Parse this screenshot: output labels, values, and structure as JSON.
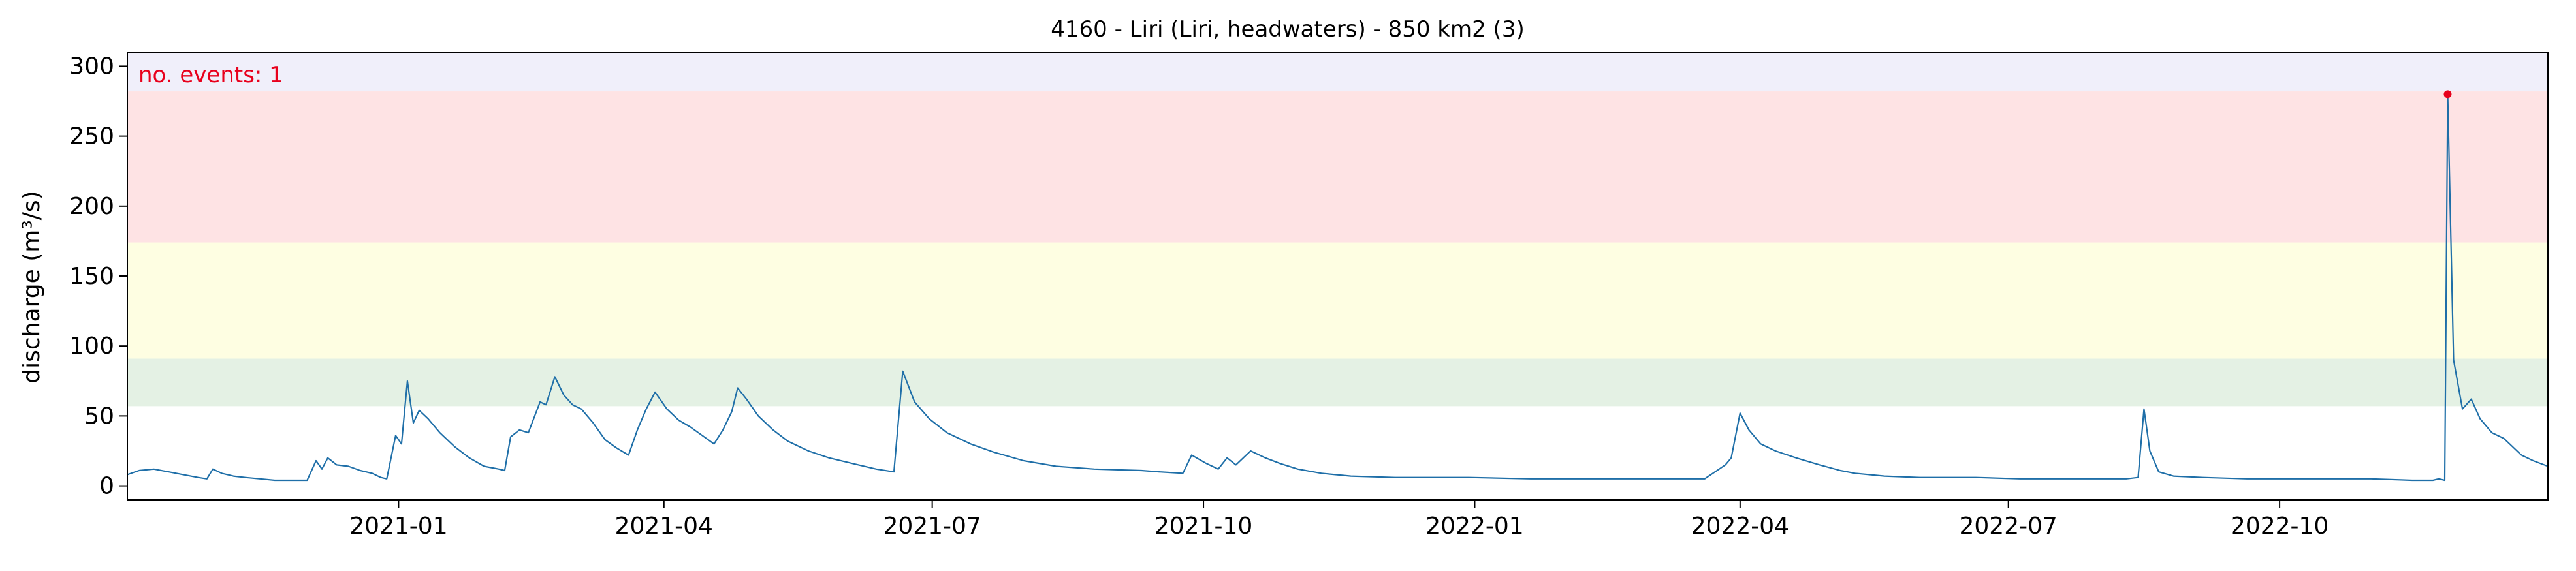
{
  "chart_data": {
    "type": "line",
    "title": "4160 - Liri (Liri, headwaters) - 850 km2 (3)",
    "xlabel": "",
    "ylabel": "discharge (m³/s)",
    "ylim": [
      -10,
      310
    ],
    "xlim": [
      "2020-10-01",
      "2022-12-31"
    ],
    "yticks": [
      0,
      50,
      100,
      150,
      200,
      250,
      300
    ],
    "xticks": [
      "2021-01",
      "2021-04",
      "2021-07",
      "2021-10",
      "2022-01",
      "2022-04",
      "2022-07",
      "2022-10"
    ],
    "line_color": "#1f6fa8",
    "grid": false,
    "annotation": {
      "text": "no. events: 1",
      "color": "#e8001c"
    },
    "bands": [
      {
        "from": 57,
        "to": 91,
        "color": "#e4f1e4"
      },
      {
        "from": 91,
        "to": 174,
        "color": "#fefee2"
      },
      {
        "from": 174,
        "to": 282,
        "color": "#fee3e4"
      },
      {
        "from": 282,
        "to": 310,
        "color": "#f0effa"
      }
    ],
    "event_points": [
      {
        "x": "2022-11-27",
        "y": 280,
        "color": "#e8001c"
      }
    ],
    "series": [
      {
        "points": [
          [
            "2020-10-01",
            8
          ],
          [
            "2020-10-05",
            11
          ],
          [
            "2020-10-10",
            12
          ],
          [
            "2020-10-15",
            10
          ],
          [
            "2020-10-20",
            8
          ],
          [
            "2020-10-25",
            6
          ],
          [
            "2020-10-28",
            5
          ],
          [
            "2020-10-30",
            12
          ],
          [
            "2020-11-02",
            9
          ],
          [
            "2020-11-06",
            7
          ],
          [
            "2020-11-10",
            6
          ],
          [
            "2020-11-15",
            5
          ],
          [
            "2020-11-20",
            4
          ],
          [
            "2020-11-28",
            4
          ],
          [
            "2020-12-01",
            4
          ],
          [
            "2020-12-04",
            18
          ],
          [
            "2020-12-06",
            12
          ],
          [
            "2020-12-08",
            20
          ],
          [
            "2020-12-11",
            15
          ],
          [
            "2020-12-15",
            14
          ],
          [
            "2020-12-19",
            11
          ],
          [
            "2020-12-23",
            9
          ],
          [
            "2020-12-26",
            6
          ],
          [
            "2020-12-28",
            5
          ],
          [
            "2020-12-31",
            36
          ],
          [
            "2021-01-02",
            30
          ],
          [
            "2021-01-04",
            75
          ],
          [
            "2021-01-06",
            45
          ],
          [
            "2021-01-08",
            54
          ],
          [
            "2021-01-11",
            48
          ],
          [
            "2021-01-15",
            38
          ],
          [
            "2021-01-20",
            28
          ],
          [
            "2021-01-25",
            20
          ],
          [
            "2021-01-30",
            14
          ],
          [
            "2021-02-04",
            12
          ],
          [
            "2021-02-06",
            11
          ],
          [
            "2021-02-08",
            35
          ],
          [
            "2021-02-11",
            40
          ],
          [
            "2021-02-14",
            38
          ],
          [
            "2021-02-18",
            60
          ],
          [
            "2021-02-20",
            58
          ],
          [
            "2021-02-23",
            78
          ],
          [
            "2021-02-26",
            65
          ],
          [
            "2021-03-01",
            58
          ],
          [
            "2021-03-04",
            55
          ],
          [
            "2021-03-08",
            45
          ],
          [
            "2021-03-12",
            33
          ],
          [
            "2021-03-16",
            27
          ],
          [
            "2021-03-20",
            22
          ],
          [
            "2021-03-23",
            40
          ],
          [
            "2021-03-26",
            55
          ],
          [
            "2021-03-29",
            67
          ],
          [
            "2021-04-02",
            55
          ],
          [
            "2021-04-06",
            47
          ],
          [
            "2021-04-10",
            42
          ],
          [
            "2021-04-14",
            36
          ],
          [
            "2021-04-18",
            30
          ],
          [
            "2021-04-21",
            40
          ],
          [
            "2021-04-24",
            53
          ],
          [
            "2021-04-26",
            70
          ],
          [
            "2021-04-29",
            62
          ],
          [
            "2021-05-03",
            50
          ],
          [
            "2021-05-08",
            40
          ],
          [
            "2021-05-13",
            32
          ],
          [
            "2021-05-20",
            25
          ],
          [
            "2021-05-27",
            20
          ],
          [
            "2021-06-04",
            16
          ],
          [
            "2021-06-12",
            12
          ],
          [
            "2021-06-18",
            10
          ],
          [
            "2021-06-21",
            82
          ],
          [
            "2021-06-25",
            60
          ],
          [
            "2021-06-30",
            48
          ],
          [
            "2021-07-06",
            38
          ],
          [
            "2021-07-14",
            30
          ],
          [
            "2021-07-22",
            24
          ],
          [
            "2021-08-01",
            18
          ],
          [
            "2021-08-12",
            14
          ],
          [
            "2021-08-25",
            12
          ],
          [
            "2021-09-10",
            11
          ],
          [
            "2021-09-16",
            10
          ],
          [
            "2021-09-24",
            9
          ],
          [
            "2021-09-27",
            22
          ],
          [
            "2021-10-02",
            16
          ],
          [
            "2021-10-06",
            12
          ],
          [
            "2021-10-09",
            20
          ],
          [
            "2021-10-12",
            15
          ],
          [
            "2021-10-17",
            25
          ],
          [
            "2021-10-22",
            20
          ],
          [
            "2021-10-27",
            16
          ],
          [
            "2021-11-02",
            12
          ],
          [
            "2021-11-10",
            9
          ],
          [
            "2021-11-20",
            7
          ],
          [
            "2021-12-05",
            6
          ],
          [
            "2021-12-30",
            6
          ],
          [
            "2022-01-20",
            5
          ],
          [
            "2022-02-10",
            5
          ],
          [
            "2022-02-25",
            5
          ],
          [
            "2022-03-10",
            5
          ],
          [
            "2022-03-20",
            5
          ],
          [
            "2022-03-27",
            15
          ],
          [
            "2022-03-29",
            20
          ],
          [
            "2022-04-01",
            52
          ],
          [
            "2022-04-04",
            40
          ],
          [
            "2022-04-08",
            30
          ],
          [
            "2022-04-13",
            25
          ],
          [
            "2022-04-20",
            20
          ],
          [
            "2022-04-28",
            15
          ],
          [
            "2022-05-05",
            11
          ],
          [
            "2022-05-10",
            9
          ],
          [
            "2022-05-20",
            7
          ],
          [
            "2022-06-01",
            6
          ],
          [
            "2022-06-20",
            6
          ],
          [
            "2022-07-05",
            5
          ],
          [
            "2022-07-25",
            5
          ],
          [
            "2022-08-10",
            5
          ],
          [
            "2022-08-14",
            6
          ],
          [
            "2022-08-16",
            55
          ],
          [
            "2022-08-18",
            25
          ],
          [
            "2022-08-21",
            10
          ],
          [
            "2022-08-26",
            7
          ],
          [
            "2022-09-05",
            6
          ],
          [
            "2022-09-20",
            5
          ],
          [
            "2022-10-01",
            5
          ],
          [
            "2022-10-15",
            5
          ],
          [
            "2022-11-01",
            5
          ],
          [
            "2022-11-15",
            4
          ],
          [
            "2022-11-22",
            4
          ],
          [
            "2022-11-24",
            5
          ],
          [
            "2022-11-26",
            4
          ],
          [
            "2022-11-27",
            280
          ],
          [
            "2022-11-29",
            90
          ],
          [
            "2022-12-02",
            55
          ],
          [
            "2022-12-05",
            62
          ],
          [
            "2022-12-08",
            48
          ],
          [
            "2022-12-12",
            38
          ],
          [
            "2022-12-16",
            34
          ],
          [
            "2022-12-19",
            28
          ],
          [
            "2022-12-22",
            22
          ],
          [
            "2022-12-26",
            18
          ],
          [
            "2022-12-31",
            14
          ]
        ]
      }
    ]
  }
}
